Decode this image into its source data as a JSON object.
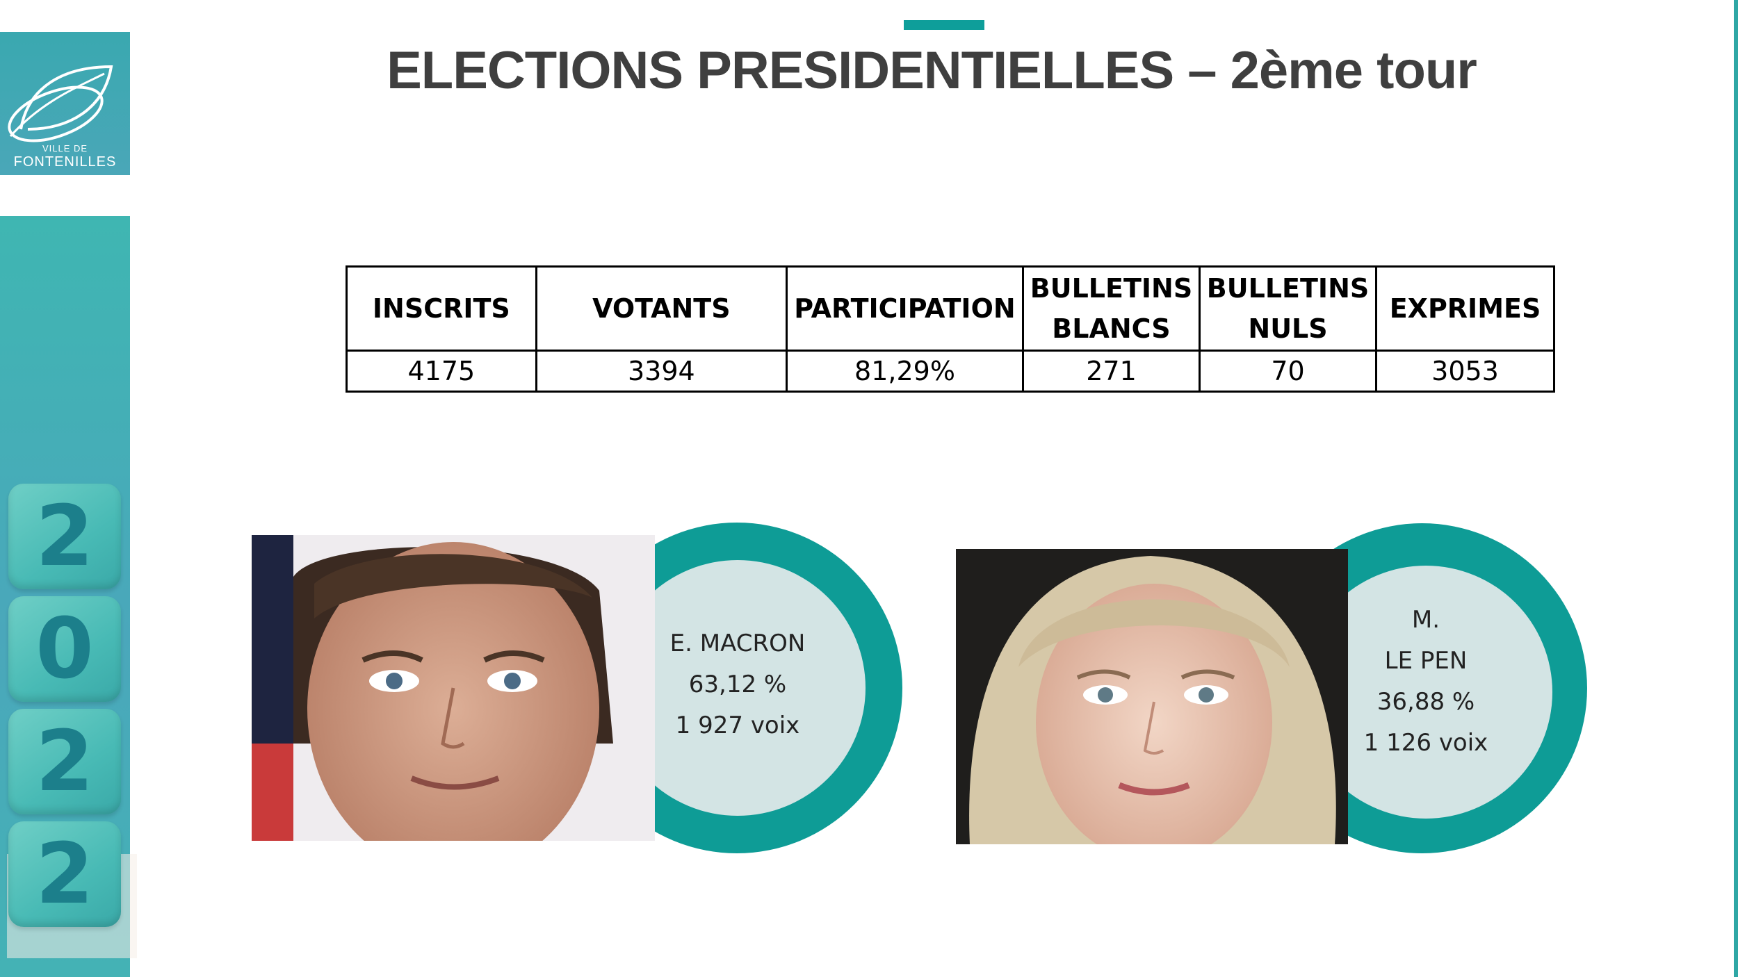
{
  "logo": {
    "line1": "VILLE DE",
    "line2": "FONTENILLES"
  },
  "year_digits": [
    "2",
    "0",
    "2",
    "2"
  ],
  "title": "ELECTIONS PRESIDENTIELLES – 2ème tour",
  "colors": {
    "accent": "#0e9e9a",
    "ring": "#0e9c96",
    "inner": "#d3e4e4",
    "title": "#3f3f3f",
    "band": "#3fb6b2"
  },
  "table": {
    "headers": [
      [
        "INSCRITS"
      ],
      [
        "VOTANTS"
      ],
      [
        "PARTICIPATION"
      ],
      [
        "BULLETINS",
        "BLANCS"
      ],
      [
        "BULLETINS",
        "NULS"
      ],
      [
        "EXPRIMES"
      ]
    ],
    "values": [
      "4175",
      "3394",
      "81,29%",
      "271",
      "70",
      "3053"
    ]
  },
  "candidates": [
    {
      "lines": [
        "E. MACRON",
        "63,12 %",
        "1 927 voix"
      ],
      "percent": 63.12,
      "photo": "portrait-macron"
    },
    {
      "lines": [
        "M.",
        "LE PEN",
        "36,88 %",
        "1 126 voix"
      ],
      "percent": 36.88,
      "photo": "portrait-le-pen"
    }
  ]
}
